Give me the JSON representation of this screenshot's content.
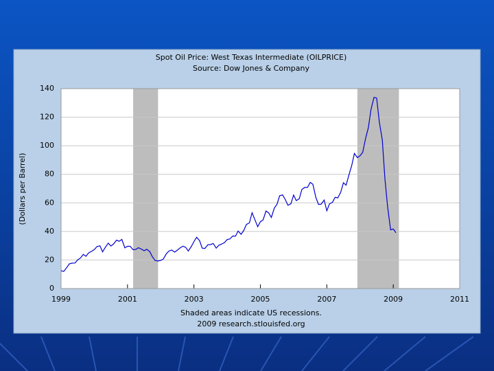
{
  "chart_data": {
    "type": "line",
    "title": "Spot Oil Price: West Texas Intermediate (OILPRICE)",
    "subtitle": "Source: Dow Jones & Company",
    "y_label": "(Dollars per Barrel)",
    "notes": [
      "Shaded areas indicate US recessions.",
      "2009 research.stlouisfed.org"
    ],
    "color": "#0000cc",
    "grid": true,
    "xlim": [
      1999,
      2011
    ],
    "xticks": [
      1999,
      2001,
      2003,
      2005,
      2007,
      2009,
      2011
    ],
    "ylim": [
      0,
      140
    ],
    "yticks": [
      0,
      20,
      40,
      60,
      80,
      100,
      120,
      140
    ],
    "recessions": [
      [
        2001.17,
        2001.92
      ],
      [
        2007.92,
        2009.17
      ]
    ],
    "x": [
      1999.0,
      1999.08,
      1999.17,
      1999.25,
      1999.33,
      1999.42,
      1999.5,
      1999.58,
      1999.67,
      1999.75,
      1999.83,
      1999.92,
      2000.0,
      2000.08,
      2000.17,
      2000.25,
      2000.33,
      2000.42,
      2000.5,
      2000.58,
      2000.67,
      2000.75,
      2000.83,
      2000.92,
      2001.0,
      2001.08,
      2001.17,
      2001.25,
      2001.33,
      2001.42,
      2001.5,
      2001.58,
      2001.67,
      2001.75,
      2001.83,
      2001.92,
      2002.0,
      2002.08,
      2002.17,
      2002.25,
      2002.33,
      2002.42,
      2002.5,
      2002.58,
      2002.67,
      2002.75,
      2002.83,
      2002.92,
      2003.0,
      2003.08,
      2003.17,
      2003.25,
      2003.33,
      2003.42,
      2003.5,
      2003.58,
      2003.67,
      2003.75,
      2003.83,
      2003.92,
      2004.0,
      2004.08,
      2004.17,
      2004.25,
      2004.33,
      2004.42,
      2004.5,
      2004.58,
      2004.67,
      2004.75,
      2004.83,
      2004.92,
      2005.0,
      2005.08,
      2005.17,
      2005.25,
      2005.33,
      2005.42,
      2005.5,
      2005.58,
      2005.67,
      2005.75,
      2005.83,
      2005.92,
      2006.0,
      2006.08,
      2006.17,
      2006.25,
      2006.33,
      2006.42,
      2006.5,
      2006.58,
      2006.67,
      2006.75,
      2006.83,
      2006.92,
      2007.0,
      2007.08,
      2007.17,
      2007.25,
      2007.33,
      2007.42,
      2007.5,
      2007.58,
      2007.67,
      2007.75,
      2007.83,
      2007.92,
      2008.0,
      2008.08,
      2008.17,
      2008.25,
      2008.33,
      2008.42,
      2008.5,
      2008.58,
      2008.67,
      2008.75,
      2008.83,
      2008.92,
      2009.0,
      2009.08
    ],
    "values": [
      12.5,
      12.0,
      14.7,
      17.3,
      17.8,
      17.9,
      20.1,
      21.3,
      23.9,
      22.6,
      25.0,
      26.1,
      27.3,
      29.4,
      29.9,
      25.7,
      28.8,
      31.8,
      29.8,
      31.2,
      33.9,
      33.1,
      34.4,
      28.5,
      29.6,
      29.6,
      27.2,
      27.4,
      28.6,
      27.6,
      26.5,
      27.5,
      25.9,
      22.2,
      19.7,
      19.3,
      19.7,
      20.7,
      24.4,
      26.3,
      27.0,
      25.5,
      26.9,
      28.4,
      29.7,
      28.9,
      26.3,
      29.4,
      32.9,
      35.9,
      33.5,
      28.3,
      28.1,
      30.7,
      30.8,
      31.6,
      28.3,
      30.3,
      31.1,
      32.2,
      34.3,
      34.7,
      36.8,
      36.7,
      40.3,
      38.0,
      40.7,
      44.9,
      46.0,
      53.1,
      48.5,
      43.3,
      46.8,
      48.0,
      54.3,
      53.0,
      49.8,
      56.4,
      59.0,
      65.0,
      65.6,
      62.3,
      58.3,
      59.4,
      65.5,
      61.6,
      62.9,
      69.4,
      70.8,
      70.9,
      74.4,
      73.0,
      63.8,
      58.9,
      59.1,
      62.0,
      54.5,
      59.3,
      60.4,
      63.9,
      63.5,
      67.5,
      74.1,
      72.4,
      79.9,
      86.2,
      94.6,
      91.7,
      93.0,
      95.4,
      105.4,
      112.6,
      125.4,
      133.9,
      133.4,
      116.7,
      104.1,
      76.6,
      57.3,
      41.1,
      41.7,
      39.1
    ]
  }
}
